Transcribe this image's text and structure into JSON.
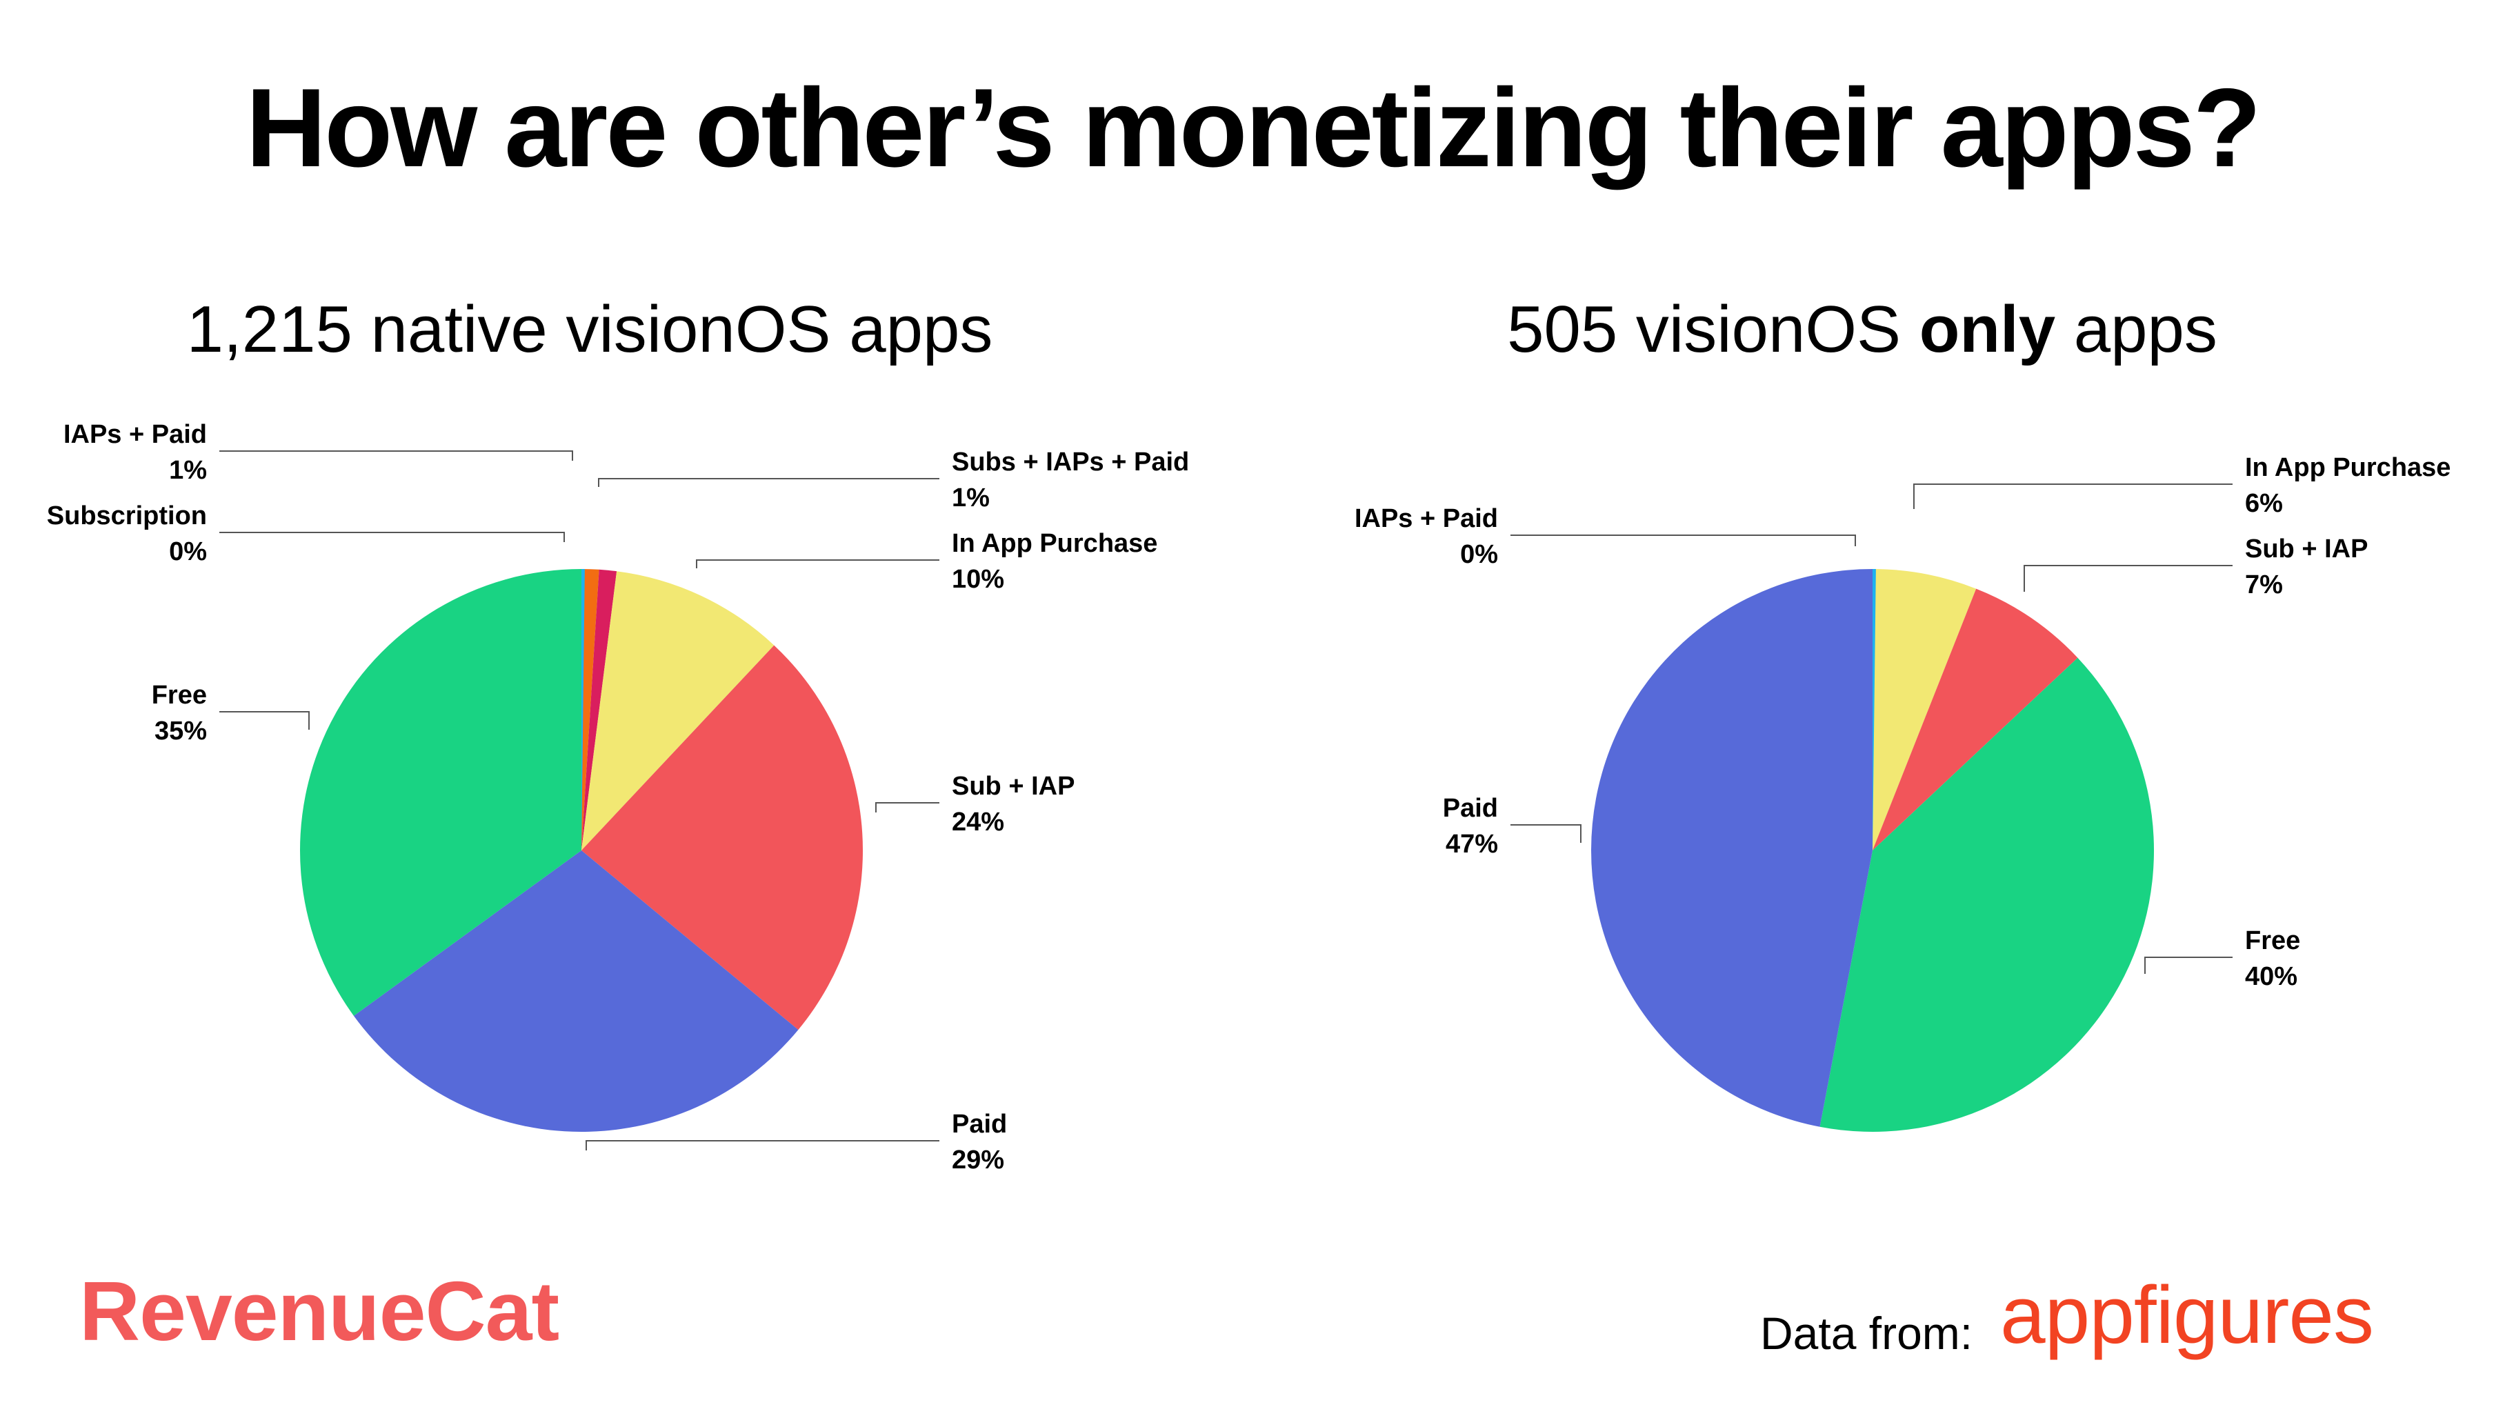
{
  "title": "How are other’s monetizing their apps?",
  "charts": [
    {
      "title_main": "1,215 native visionOS apps",
      "title_pre": "",
      "title_bold": "",
      "title_post": ""
    },
    {
      "title_main": "",
      "title_pre": "505 visionOS ",
      "title_bold": "only",
      "title_post": " apps"
    }
  ],
  "chart_data": [
    {
      "type": "pie",
      "title": "1,215 native visionOS apps",
      "slices": [
        {
          "label": "IAPs + Paid",
          "value": 1,
          "display": "1%",
          "color": "#f26d12"
        },
        {
          "label": "Subs + IAPs + Paid",
          "value": 1,
          "display": "1%",
          "color": "#d91e5e"
        },
        {
          "label": "In App Purchase",
          "value": 10,
          "display": "10%",
          "color": "#f2e873"
        },
        {
          "label": "Sub + IAP",
          "value": 24,
          "display": "24%",
          "color": "#f2555a"
        },
        {
          "label": "Paid",
          "value": 29,
          "display": "29%",
          "color": "#576ad9"
        },
        {
          "label": "Free",
          "value": 35,
          "display": "35%",
          "color": "#19d383"
        },
        {
          "label": "Subscription",
          "value": 0,
          "display": "0%",
          "color": "#1eb2f0"
        }
      ]
    },
    {
      "type": "pie",
      "title": "505 visionOS only apps",
      "slices": [
        {
          "label": "In App Purchase",
          "value": 6,
          "display": "6%",
          "color": "#f2e873"
        },
        {
          "label": "Sub + IAP",
          "value": 7,
          "display": "7%",
          "color": "#f2555a"
        },
        {
          "label": "Free",
          "value": 40,
          "display": "40%",
          "color": "#19d383"
        },
        {
          "label": "Paid",
          "value": 47,
          "display": "47%",
          "color": "#576ad9"
        },
        {
          "label": "IAPs + Paid",
          "value": 0,
          "display": "0%",
          "color": "#1eb2f0"
        }
      ]
    }
  ],
  "footer": {
    "logo_text": "RevenueCat",
    "data_from_label": "Data from:",
    "source_logo_text": "appfigures"
  },
  "colors": {
    "revenuecat": "#f25a5a",
    "appfigures": "#f24322"
  }
}
